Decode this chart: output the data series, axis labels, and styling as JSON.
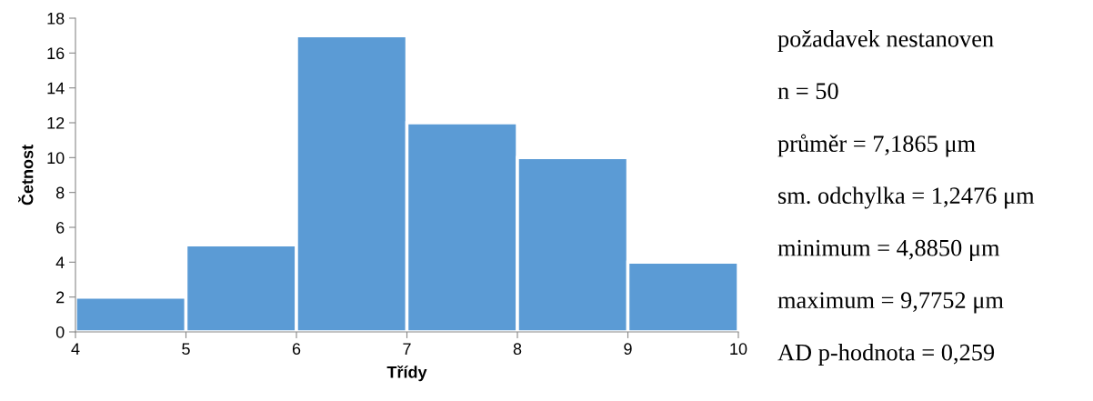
{
  "chart_data": {
    "type": "histogram",
    "xlabel": "Třídy",
    "ylabel": "Četnost",
    "bins": [
      4,
      5,
      6,
      7,
      8,
      9,
      10
    ],
    "values": [
      2,
      5,
      17,
      12,
      10,
      4
    ],
    "color": "#5b9bd5",
    "xlim": [
      4,
      10
    ],
    "xticks": [
      4,
      5,
      6,
      7,
      8,
      9,
      10
    ],
    "ylim": [
      0,
      18
    ],
    "yticks": [
      0,
      2,
      4,
      6,
      8,
      10,
      12,
      14,
      16,
      18
    ],
    "grid": false,
    "legend": false,
    "annotations": [
      "požadavek nestanoven",
      "n = 50",
      "průměr = 7,1865 μm",
      "sm. odchylka = 1,2476 μm",
      "minimum = 4,8850 μm",
      "maximum = 9,7752 μm",
      "AD p-hodnota = 0,259"
    ]
  }
}
